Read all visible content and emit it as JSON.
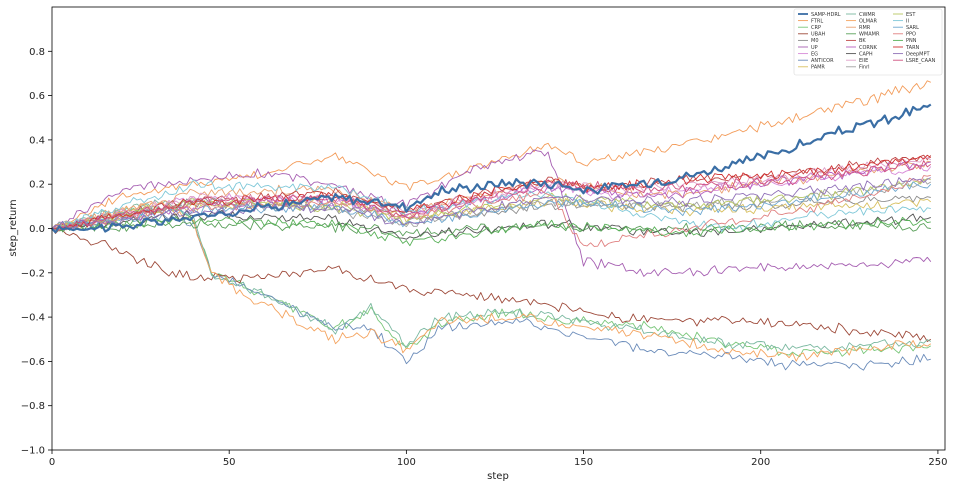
{
  "chart_data": {
    "type": "line",
    "title": "",
    "xlabel": "step",
    "ylabel": "step_return",
    "xlim": [
      0,
      252
    ],
    "ylim": [
      -1.0,
      1.0
    ],
    "xticks": [
      0,
      50,
      100,
      150,
      200,
      250
    ],
    "yticks": [
      -1.0,
      -0.8,
      -0.6,
      -0.4,
      -0.2,
      0.0,
      0.2,
      0.4,
      0.6,
      0.8
    ],
    "ytick_labels": [
      "−1.0",
      "−0.8",
      "−0.6",
      "−0.4",
      "−0.2",
      "0.0",
      "0.2",
      "0.4",
      "0.6",
      "0.8"
    ],
    "grid": false,
    "legend_position": "top-right",
    "legend_columns": 3,
    "series": [
      {
        "name": "SAMP-HDRL",
        "color": "#3a6ea5",
        "bold": true,
        "points": [
          [
            0,
            0.0
          ],
          [
            20,
            0.01
          ],
          [
            40,
            0.05
          ],
          [
            60,
            0.1
          ],
          [
            80,
            0.14
          ],
          [
            100,
            0.1
          ],
          [
            110,
            0.17
          ],
          [
            130,
            0.21
          ],
          [
            145,
            0.2
          ],
          [
            150,
            0.17
          ],
          [
            165,
            0.2
          ],
          [
            180,
            0.24
          ],
          [
            195,
            0.3
          ],
          [
            210,
            0.37
          ],
          [
            225,
            0.45
          ],
          [
            238,
            0.5
          ],
          [
            248,
            0.56
          ]
        ]
      },
      {
        "name": "FTRL",
        "color": "#f39c5a",
        "points": [
          [
            0,
            0.0
          ],
          [
            20,
            0.15
          ],
          [
            40,
            0.2
          ],
          [
            60,
            0.25
          ],
          [
            80,
            0.33
          ],
          [
            100,
            0.18
          ],
          [
            120,
            0.28
          ],
          [
            140,
            0.38
          ],
          [
            150,
            0.3
          ],
          [
            170,
            0.35
          ],
          [
            190,
            0.42
          ],
          [
            210,
            0.5
          ],
          [
            230,
            0.58
          ],
          [
            248,
            0.66
          ]
        ]
      },
      {
        "name": "CRP",
        "color": "#78c679",
        "points": [
          [
            0,
            0.0
          ],
          [
            30,
            0.1
          ],
          [
            40,
            0.05
          ],
          [
            45,
            -0.2
          ],
          [
            60,
            -0.3
          ],
          [
            80,
            -0.45
          ],
          [
            90,
            -0.38
          ],
          [
            100,
            -0.55
          ],
          [
            110,
            -0.42
          ],
          [
            130,
            -0.38
          ],
          [
            150,
            -0.42
          ],
          [
            170,
            -0.45
          ],
          [
            190,
            -0.52
          ],
          [
            210,
            -0.56
          ],
          [
            230,
            -0.55
          ],
          [
            248,
            -0.53
          ]
        ]
      },
      {
        "name": "UBAH",
        "color": "#9e4a3a",
        "points": [
          [
            0,
            0.0
          ],
          [
            20,
            -0.1
          ],
          [
            30,
            -0.18
          ],
          [
            40,
            -0.22
          ],
          [
            60,
            -0.22
          ],
          [
            80,
            -0.18
          ],
          [
            100,
            -0.28
          ],
          [
            120,
            -0.3
          ],
          [
            140,
            -0.35
          ],
          [
            160,
            -0.4
          ],
          [
            180,
            -0.42
          ],
          [
            200,
            -0.42
          ],
          [
            220,
            -0.45
          ],
          [
            248,
            -0.5
          ]
        ]
      },
      {
        "name": "M0",
        "color": "#8c8c8c",
        "points": [
          [
            0,
            0.0
          ],
          [
            40,
            0.12
          ],
          [
            80,
            0.1
          ],
          [
            100,
            0.05
          ],
          [
            140,
            0.1
          ],
          [
            180,
            0.1
          ],
          [
            220,
            0.12
          ],
          [
            248,
            0.14
          ]
        ]
      },
      {
        "name": "UP",
        "color": "#a65fb2",
        "points": [
          [
            0,
            0.0
          ],
          [
            20,
            0.18
          ],
          [
            40,
            0.22
          ],
          [
            60,
            0.25
          ],
          [
            80,
            0.2
          ],
          [
            100,
            0.1
          ],
          [
            120,
            0.28
          ],
          [
            140,
            0.35
          ],
          [
            150,
            -0.15
          ],
          [
            170,
            -0.2
          ],
          [
            200,
            -0.18
          ],
          [
            225,
            -0.16
          ],
          [
            248,
            -0.15
          ]
        ]
      },
      {
        "name": "EG",
        "color": "#d78ad8",
        "points": [
          [
            0,
            0.0
          ],
          [
            40,
            0.14
          ],
          [
            80,
            0.12
          ],
          [
            100,
            0.05
          ],
          [
            140,
            0.2
          ],
          [
            160,
            0.15
          ],
          [
            200,
            0.2
          ],
          [
            248,
            0.28
          ]
        ]
      },
      {
        "name": "ANTICOR",
        "color": "#6b8cba",
        "points": [
          [
            0,
            0.0
          ],
          [
            30,
            0.08
          ],
          [
            40,
            0.02
          ],
          [
            45,
            -0.2
          ],
          [
            60,
            -0.3
          ],
          [
            80,
            -0.45
          ],
          [
            90,
            -0.45
          ],
          [
            100,
            -0.6
          ],
          [
            110,
            -0.45
          ],
          [
            130,
            -0.42
          ],
          [
            150,
            -0.48
          ],
          [
            170,
            -0.55
          ],
          [
            190,
            -0.58
          ],
          [
            210,
            -0.62
          ],
          [
            230,
            -0.62
          ],
          [
            248,
            -0.59
          ]
        ]
      },
      {
        "name": "PAMR",
        "color": "#d8c060",
        "points": [
          [
            0,
            0.0
          ],
          [
            40,
            0.1
          ],
          [
            80,
            0.12
          ],
          [
            100,
            0.05
          ],
          [
            140,
            0.12
          ],
          [
            180,
            0.08
          ],
          [
            220,
            0.1
          ],
          [
            248,
            0.12
          ]
        ]
      },
      {
        "name": "CWMR",
        "color": "#7ab8a0",
        "points": [
          [
            0,
            0.0
          ],
          [
            30,
            0.12
          ],
          [
            40,
            0.05
          ],
          [
            45,
            -0.22
          ],
          [
            60,
            -0.3
          ],
          [
            80,
            -0.46
          ],
          [
            90,
            -0.36
          ],
          [
            100,
            -0.52
          ],
          [
            110,
            -0.4
          ],
          [
            130,
            -0.38
          ],
          [
            150,
            -0.42
          ],
          [
            170,
            -0.47
          ],
          [
            190,
            -0.52
          ],
          [
            210,
            -0.55
          ],
          [
            230,
            -0.52
          ],
          [
            248,
            -0.51
          ]
        ]
      },
      {
        "name": "OLMAR",
        "color": "#f4a460",
        "points": [
          [
            0,
            0.0
          ],
          [
            30,
            0.12
          ],
          [
            40,
            0.03
          ],
          [
            45,
            -0.2
          ],
          [
            60,
            -0.35
          ],
          [
            80,
            -0.5
          ],
          [
            90,
            -0.47
          ],
          [
            100,
            -0.55
          ],
          [
            110,
            -0.42
          ],
          [
            130,
            -0.4
          ],
          [
            150,
            -0.45
          ],
          [
            170,
            -0.48
          ],
          [
            190,
            -0.55
          ],
          [
            210,
            -0.58
          ],
          [
            230,
            -0.54
          ],
          [
            248,
            -0.52
          ]
        ]
      },
      {
        "name": "RMR",
        "color": "#e8a070",
        "points": [
          [
            0,
            0.0
          ],
          [
            40,
            0.16
          ],
          [
            80,
            0.18
          ],
          [
            100,
            0.08
          ],
          [
            140,
            0.22
          ],
          [
            170,
            0.15
          ],
          [
            210,
            0.22
          ],
          [
            248,
            0.3
          ]
        ]
      },
      {
        "name": "WMAMR",
        "color": "#5aa05a",
        "points": [
          [
            0,
            0.0
          ],
          [
            40,
            0.02
          ],
          [
            80,
            0.01
          ],
          [
            100,
            -0.02
          ],
          [
            140,
            0.01
          ],
          [
            180,
            0.0
          ],
          [
            220,
            0.02
          ],
          [
            248,
            0.0
          ]
        ]
      },
      {
        "name": "BK",
        "color": "#c04848",
        "points": [
          [
            0,
            0.0
          ],
          [
            40,
            0.12
          ],
          [
            80,
            0.16
          ],
          [
            100,
            0.08
          ],
          [
            140,
            0.22
          ],
          [
            150,
            0.18
          ],
          [
            180,
            0.22
          ],
          [
            210,
            0.25
          ],
          [
            248,
            0.33
          ]
        ]
      },
      {
        "name": "CORNK",
        "color": "#b55fc0",
        "points": [
          [
            0,
            0.0
          ],
          [
            40,
            0.1
          ],
          [
            80,
            0.14
          ],
          [
            100,
            0.06
          ],
          [
            140,
            0.18
          ],
          [
            170,
            0.15
          ],
          [
            210,
            0.22
          ],
          [
            248,
            0.3
          ]
        ]
      },
      {
        "name": "CAPH",
        "color": "#555555",
        "points": [
          [
            0,
            0.0
          ],
          [
            40,
            0.06
          ],
          [
            80,
            0.04
          ],
          [
            100,
            -0.04
          ],
          [
            140,
            0.02
          ],
          [
            180,
            -0.02
          ],
          [
            220,
            0.02
          ],
          [
            248,
            0.05
          ]
        ]
      },
      {
        "name": "EIIE",
        "color": "#e0a0c8",
        "points": [
          [
            0,
            0.0
          ],
          [
            40,
            0.14
          ],
          [
            80,
            0.14
          ],
          [
            100,
            0.08
          ],
          [
            140,
            0.2
          ],
          [
            170,
            0.18
          ],
          [
            210,
            0.24
          ],
          [
            248,
            0.31
          ]
        ]
      },
      {
        "name": "Finrl",
        "color": "#a0a0a0",
        "points": [
          [
            0,
            0.0
          ],
          [
            40,
            0.12
          ],
          [
            80,
            0.08
          ],
          [
            100,
            0.02
          ],
          [
            140,
            0.12
          ],
          [
            180,
            0.1
          ],
          [
            220,
            0.16
          ],
          [
            248,
            0.21
          ]
        ]
      },
      {
        "name": "EST",
        "color": "#b8c860",
        "points": [
          [
            0,
            0.0
          ],
          [
            40,
            0.12
          ],
          [
            80,
            0.1
          ],
          [
            100,
            0.04
          ],
          [
            140,
            0.14
          ],
          [
            180,
            0.1
          ],
          [
            220,
            0.15
          ],
          [
            248,
            0.22
          ]
        ]
      },
      {
        "name": "II",
        "color": "#7fc8d8",
        "points": [
          [
            0,
            0.0
          ],
          [
            40,
            0.2
          ],
          [
            80,
            0.18
          ],
          [
            100,
            0.08
          ],
          [
            140,
            0.16
          ],
          [
            170,
            0.05
          ],
          [
            190,
            0.0
          ],
          [
            210,
            0.05
          ],
          [
            230,
            0.08
          ],
          [
            248,
            0.09
          ]
        ]
      },
      {
        "name": "SARL",
        "color": "#6ea8d0",
        "points": [
          [
            0,
            0.0
          ],
          [
            40,
            0.08
          ],
          [
            80,
            0.1
          ],
          [
            100,
            0.02
          ],
          [
            140,
            0.12
          ],
          [
            180,
            0.08
          ],
          [
            220,
            0.14
          ],
          [
            248,
            0.2
          ]
        ]
      },
      {
        "name": "PPO",
        "color": "#e08080",
        "points": [
          [
            0,
            0.0
          ],
          [
            40,
            0.1
          ],
          [
            80,
            0.12
          ],
          [
            100,
            0.06
          ],
          [
            140,
            0.16
          ],
          [
            150,
            -0.08
          ],
          [
            170,
            -0.02
          ],
          [
            200,
            0.05
          ],
          [
            230,
            0.15
          ],
          [
            248,
            0.24
          ]
        ]
      },
      {
        "name": "PNN",
        "color": "#58b058",
        "points": [
          [
            0,
            0.0
          ],
          [
            40,
            0.04
          ],
          [
            80,
            0.02
          ],
          [
            100,
            -0.06
          ],
          [
            140,
            0.02
          ],
          [
            180,
            -0.02
          ],
          [
            220,
            0.02
          ],
          [
            248,
            0.03
          ]
        ]
      },
      {
        "name": "TARN",
        "color": "#d03030",
        "points": [
          [
            0,
            0.0
          ],
          [
            40,
            0.12
          ],
          [
            80,
            0.15
          ],
          [
            100,
            0.08
          ],
          [
            140,
            0.22
          ],
          [
            150,
            0.18
          ],
          [
            180,
            0.22
          ],
          [
            210,
            0.25
          ],
          [
            248,
            0.32
          ]
        ]
      },
      {
        "name": "DeepMPT",
        "color": "#9070b8",
        "points": [
          [
            0,
            0.0
          ],
          [
            40,
            0.08
          ],
          [
            80,
            0.1
          ],
          [
            100,
            0.02
          ],
          [
            140,
            0.14
          ],
          [
            180,
            0.12
          ],
          [
            220,
            0.18
          ],
          [
            248,
            0.23
          ]
        ]
      },
      {
        "name": "LSRE_CAAN",
        "color": "#d05080",
        "points": [
          [
            0,
            0.0
          ],
          [
            40,
            0.12
          ],
          [
            80,
            0.14
          ],
          [
            100,
            0.06
          ],
          [
            140,
            0.2
          ],
          [
            170,
            0.18
          ],
          [
            210,
            0.22
          ],
          [
            248,
            0.29
          ]
        ]
      }
    ]
  }
}
